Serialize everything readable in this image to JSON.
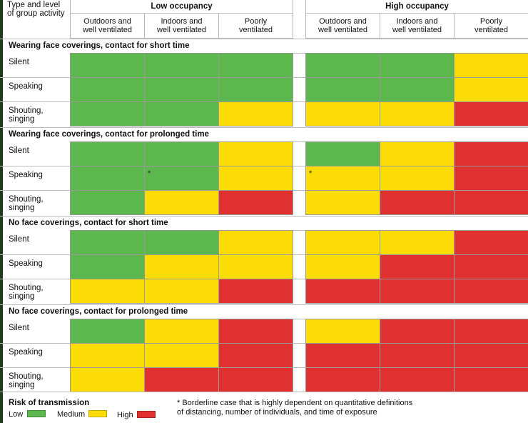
{
  "colors": {
    "low": "#5cb84c",
    "medium": "#fbdc06",
    "high": "#e0302f",
    "grid": "#9a9a9a"
  },
  "header": {
    "corner_label_1": "Type and level",
    "corner_label_2": "of group activity",
    "groups": [
      "Low occupancy",
      "High occupancy"
    ],
    "columns": [
      [
        "Outdoors and",
        "well ventilated"
      ],
      [
        "Indoors and",
        "well ventilated"
      ],
      [
        "Poorly",
        "ventilated"
      ],
      [
        "Outdoors and",
        "well ventilated"
      ],
      [
        "Indoors and",
        "well ventilated"
      ],
      [
        "Poorly",
        "ventilated"
      ]
    ]
  },
  "chart_data": {
    "type": "heatmap",
    "title": "",
    "column_groups": [
      "Low occupancy",
      "High occupancy"
    ],
    "columns": [
      "Outdoors and well ventilated",
      "Indoors and well ventilated",
      "Poorly ventilated",
      "Outdoors and well ventilated",
      "Indoors and well ventilated",
      "Poorly ventilated"
    ],
    "rows": [
      "Silent",
      "Speaking",
      "Shouting, singing"
    ],
    "sections": [
      {
        "title": "Wearing face coverings, contact for short time",
        "cells": [
          [
            "Low",
            "Low",
            "Low",
            "Low",
            "Low",
            "Medium"
          ],
          [
            "Low",
            "Low",
            "Low",
            "Low",
            "Low",
            "Medium"
          ],
          [
            "Low",
            "Low",
            "Medium",
            "Medium",
            "Medium",
            "High"
          ]
        ],
        "markers": []
      },
      {
        "title": "Wearing face coverings, contact for prolonged time",
        "cells": [
          [
            "Low",
            "Low",
            "Medium",
            "Low",
            "Medium",
            "High"
          ],
          [
            "Low",
            "Low",
            "Medium",
            "Medium",
            "Medium",
            "High"
          ],
          [
            "Low",
            "Medium",
            "High",
            "Medium",
            "High",
            "High"
          ]
        ],
        "markers": [
          {
            "row": 1,
            "col": 1,
            "text": "*"
          },
          {
            "row": 1,
            "col": 3,
            "text": "*"
          }
        ]
      },
      {
        "title": "No face coverings, contact for short time",
        "cells": [
          [
            "Low",
            "Low",
            "Medium",
            "Medium",
            "Medium",
            "High"
          ],
          [
            "Low",
            "Medium",
            "Medium",
            "Medium",
            "High",
            "High"
          ],
          [
            "Medium",
            "Medium",
            "High",
            "High",
            "High",
            "High"
          ]
        ],
        "markers": []
      },
      {
        "title": "No face coverings, contact for prolonged time",
        "cells": [
          [
            "Low",
            "Medium",
            "High",
            "Medium",
            "High",
            "High"
          ],
          [
            "Medium",
            "Medium",
            "High",
            "High",
            "High",
            "High"
          ],
          [
            "Medium",
            "High",
            "High",
            "High",
            "High",
            "High"
          ]
        ],
        "markers": []
      }
    ],
    "row_labels": [
      [
        "Silent"
      ],
      [
        "Speaking"
      ],
      [
        "Shouting,",
        "singing"
      ]
    ],
    "legend": {
      "title": "Risk of transmission",
      "items": [
        {
          "label": "Low",
          "color": "#5cb84c"
        },
        {
          "label": "Medium",
          "color": "#fbdc06"
        },
        {
          "label": "High",
          "color": "#e0302f"
        }
      ]
    },
    "footnote_lines": [
      "* Borderline case that is highly dependent on quantitative definitions",
      "of distancing, number of individuals, and time of exposure"
    ]
  }
}
